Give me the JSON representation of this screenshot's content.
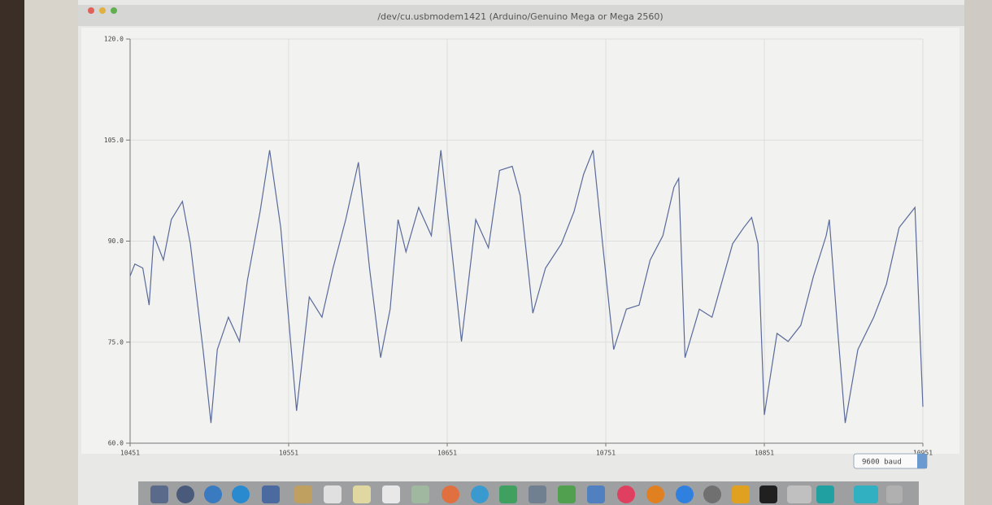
{
  "chart_data": {
    "type": "line",
    "title": "/dev/cu.usbmodem1421 (Arduino/Genuino Mega or Mega 2560)",
    "x": [
      0,
      3,
      8,
      12,
      15,
      21,
      26,
      33,
      38,
      46,
      51,
      55,
      62,
      69,
      74,
      82,
      88,
      95,
      105,
      113,
      121,
      128,
      136,
      144,
      151,
      158,
      164,
      169,
      174,
      182,
      190,
      196,
      203,
      209,
      218,
      226,
      233,
      241,
      246,
      254,
      262,
      272,
      280,
      286,
      292,
      298,
      305,
      313,
      321,
      328,
      336,
      343,
      346,
      350,
      359,
      367,
      372,
      380,
      387,
      392,
      396,
      400,
      408,
      415,
      423,
      431,
      439,
      441,
      446,
      451,
      459,
      469,
      477,
      485,
      495,
      500
    ],
    "series": [
      {
        "color": "#5a6a9a",
        "values": [
          84.8,
          86.6,
          86.0,
          80.5,
          90.8,
          87.2,
          93.2,
          95.9,
          89.6,
          73.9,
          63.0,
          73.9,
          78.7,
          75.1,
          84.2,
          94.4,
          103.5,
          92.0,
          64.8,
          81.7,
          78.7,
          86.0,
          93.2,
          101.7,
          86.0,
          72.7,
          79.9,
          93.2,
          88.4,
          95.0,
          90.8,
          103.5,
          88.4,
          75.1,
          93.2,
          89.0,
          100.5,
          101.1,
          96.8,
          79.3,
          86.0,
          89.6,
          94.4,
          99.9,
          103.5,
          89.6,
          73.9,
          79.9,
          80.5,
          87.2,
          90.8,
          98.0,
          99.3,
          72.7,
          79.9,
          78.7,
          82.9,
          89.6,
          92.0,
          93.5,
          89.6,
          64.2,
          76.3,
          75.1,
          77.5,
          84.8,
          90.8,
          93.2,
          77.5,
          63.0,
          73.9,
          78.7,
          83.6,
          92.0,
          95.0,
          65.4
        ]
      }
    ],
    "xlim": [
      0,
      500
    ],
    "xticks": [
      {
        "value": 0,
        "label": "10451"
      },
      {
        "value": 100,
        "label": "10551"
      },
      {
        "value": 200,
        "label": "10651"
      },
      {
        "value": 300,
        "label": "10751"
      },
      {
        "value": 400,
        "label": "10851"
      },
      {
        "value": 500,
        "label": "10951"
      }
    ],
    "ylim": [
      60,
      120
    ],
    "yticks": [
      {
        "value": 60,
        "label": "60.0"
      },
      {
        "value": 75,
        "label": "75.0"
      },
      {
        "value": 90,
        "label": "90.0"
      },
      {
        "value": 105,
        "label": "105.0"
      },
      {
        "value": 120,
        "label": "120.0"
      }
    ],
    "grid": true
  },
  "baud_rate": "9600 baud"
}
